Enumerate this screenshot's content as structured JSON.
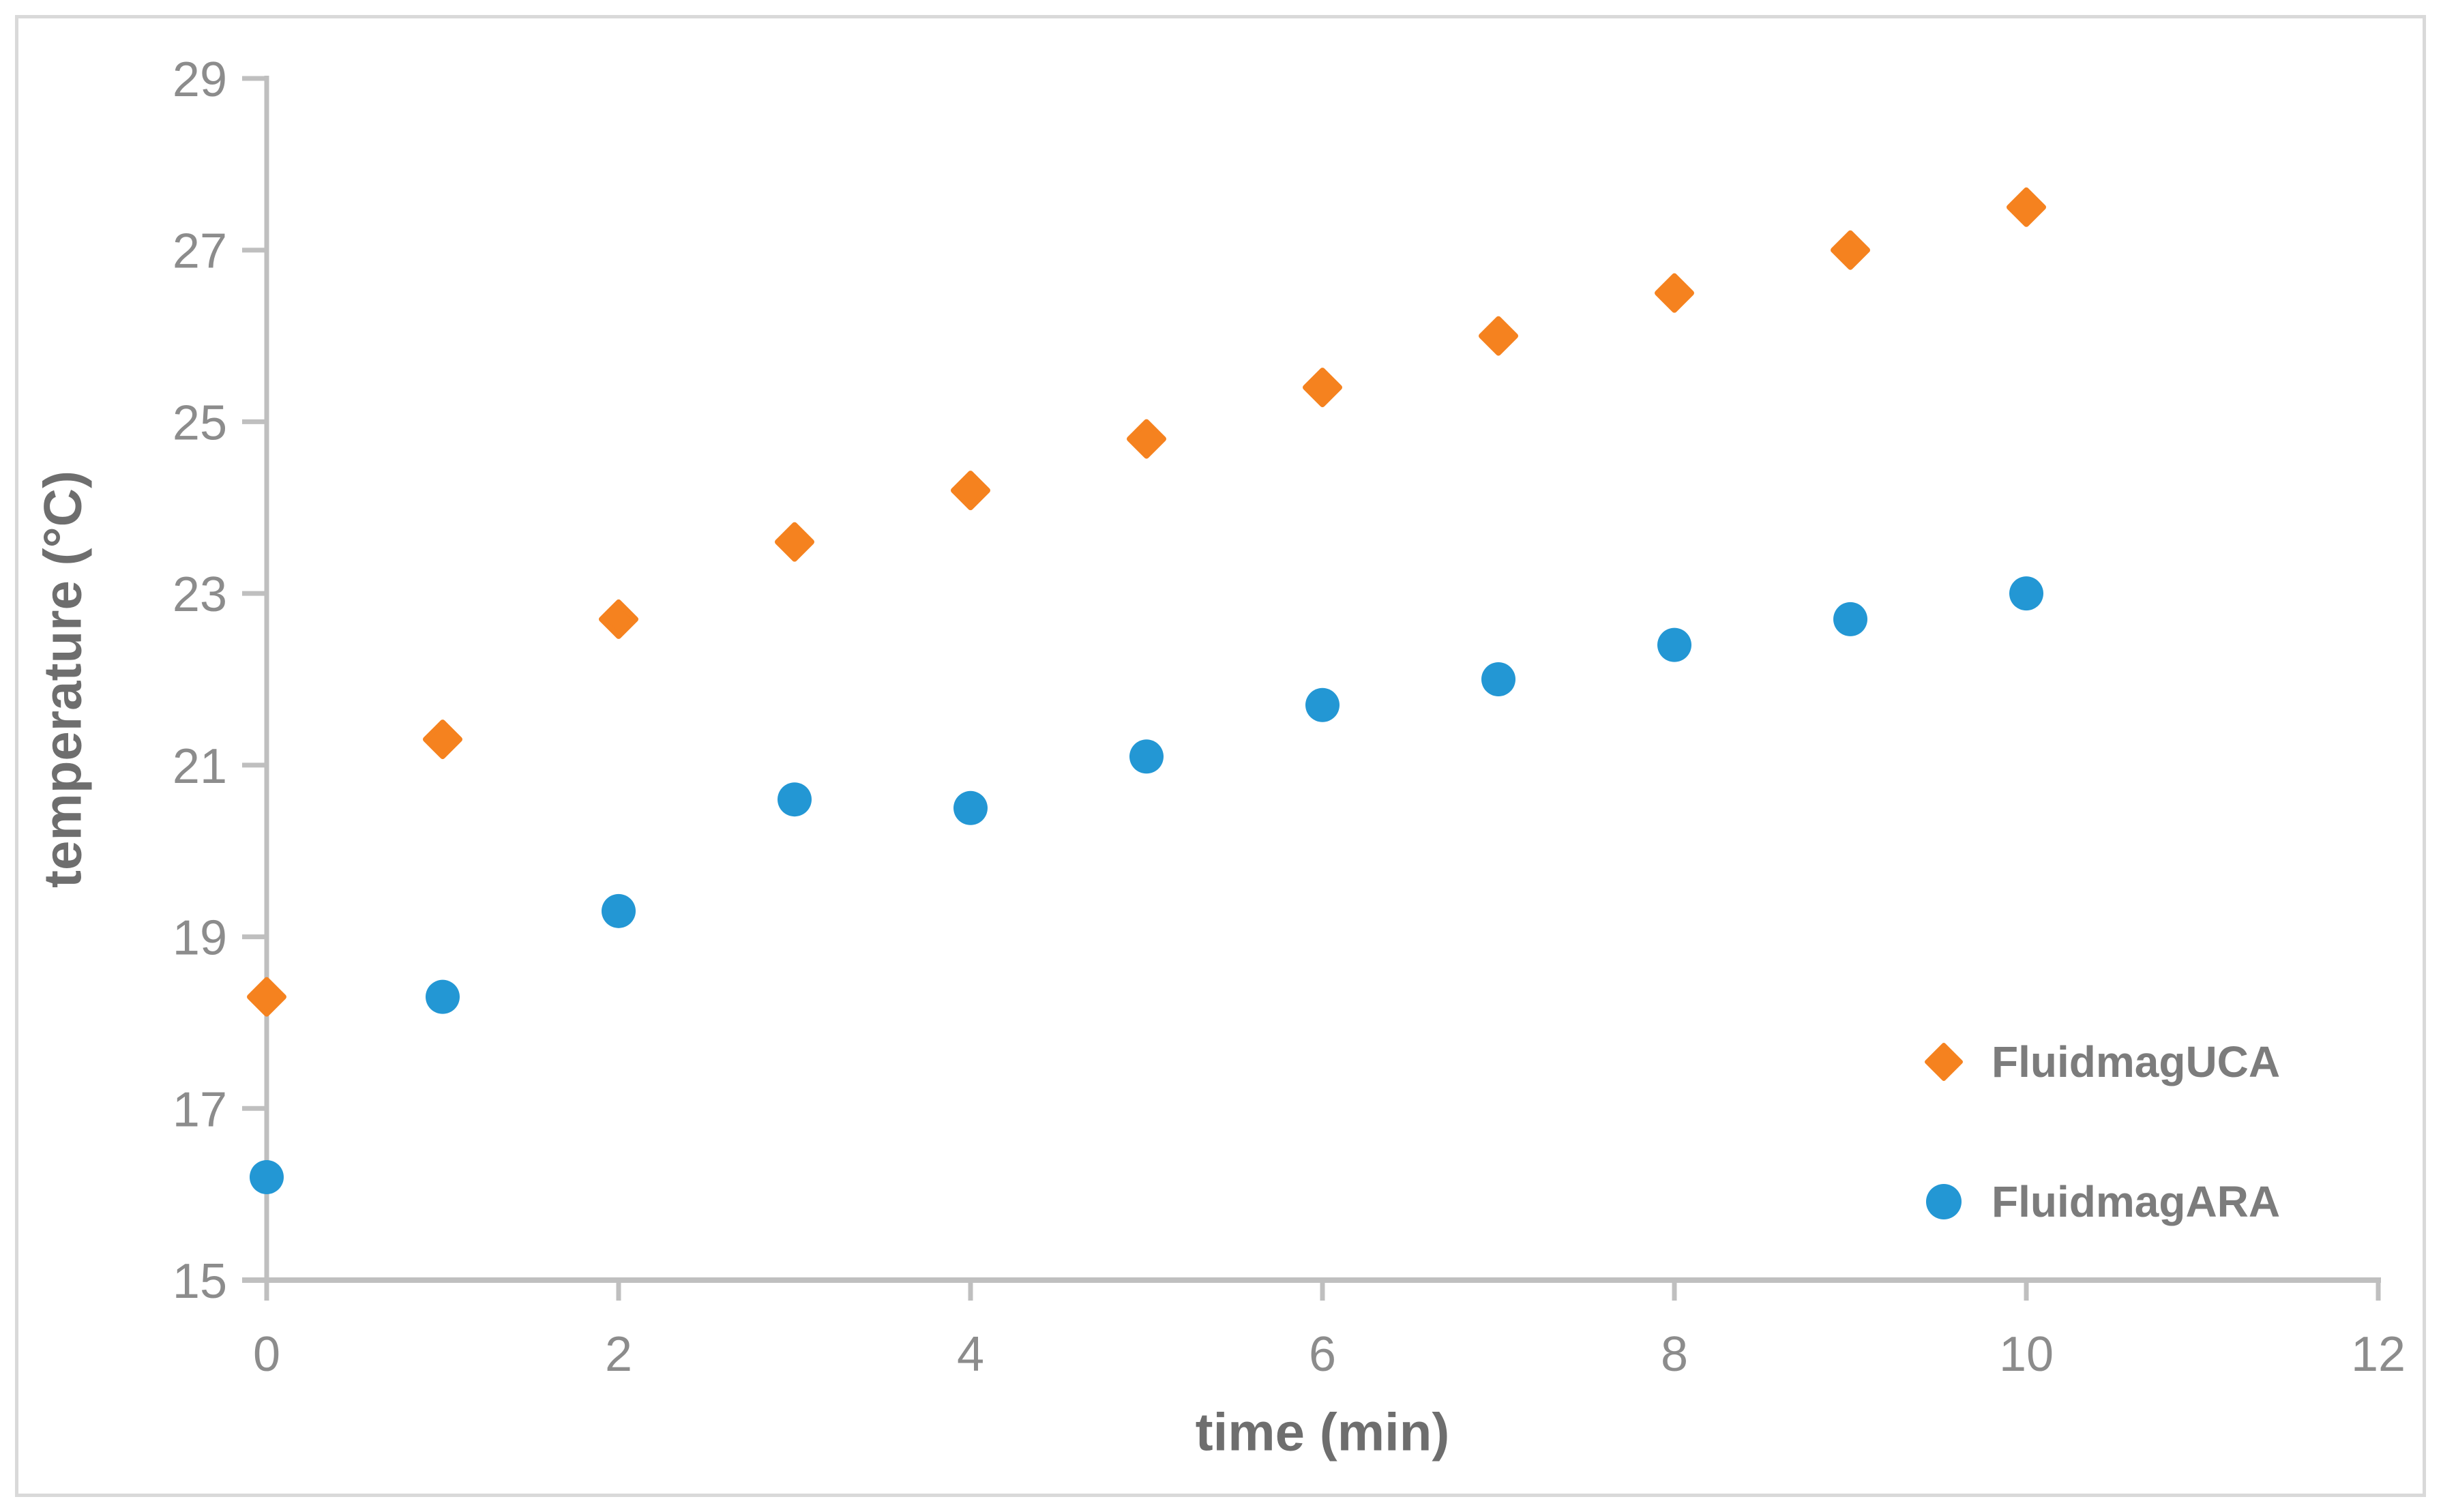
{
  "figure": {
    "background_color": "#ffffff",
    "border_color": "#d9d9d9"
  },
  "styles": {
    "axis_line_color": "#bfbfbf",
    "tick_label_color": "#8c8c8c",
    "axis_title_color": "#6e6e6e",
    "legend_text_color": "#7c7c7c",
    "series1_color": "#f5821f",
    "series2_color": "#2397d4"
  },
  "chart_data": {
    "type": "scatter",
    "title": "",
    "xlabel": "time (min)",
    "ylabel": "temperature (°C)",
    "xlim": [
      0,
      12
    ],
    "ylim": [
      15,
      29
    ],
    "xticks": [
      0,
      2,
      4,
      6,
      8,
      10,
      12
    ],
    "yticks": [
      15,
      17,
      19,
      21,
      23,
      25,
      27,
      29
    ],
    "grid": false,
    "legend_position": "right-middle",
    "x": [
      0,
      1,
      2,
      3,
      4,
      5,
      6,
      7,
      8,
      9,
      10
    ],
    "series": [
      {
        "name": "FluidmagUCA",
        "marker": "diamond",
        "color": "#f5821f",
        "values": [
          18.3,
          21.3,
          22.7,
          23.6,
          24.2,
          24.8,
          25.4,
          26.0,
          26.5,
          27.0,
          27.5
        ]
      },
      {
        "name": "FluidmagARA",
        "marker": "circle",
        "color": "#2397d4",
        "values": [
          16.2,
          18.3,
          19.3,
          20.6,
          20.5,
          21.1,
          21.7,
          22.0,
          22.4,
          22.7,
          23.0
        ]
      }
    ]
  }
}
